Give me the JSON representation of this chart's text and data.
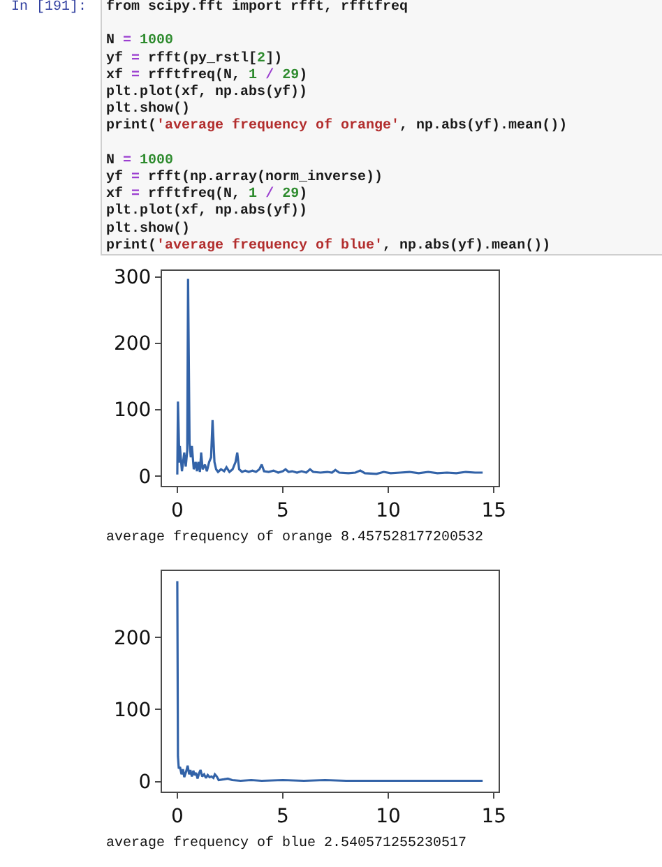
{
  "chart_data": [
    {
      "type": "other",
      "annotations": [
        "In [191]:",
        "from scipy.fft import rfft, rfftfreq",
        "N = 1000\nyf = rfft(py_rstl[2])\nxf = rfftfreq(N, 1 / 29)\nplt.plot(xf, np.abs(yf))\nplt.show()\nprint('average frequency of orange', np.abs(yf).mean())",
        "N = 1000\nyf = rfft(np.array(norm_inverse))\nxf = rfftfreq(N, 1 / 29)\nplt.plot(xf, np.abs(yf))\nplt.show()\nprint('average frequency of blue', np.abs(yf).mean())"
      ]
    },
    {
      "type": "line",
      "x": [
        0,
        0.03,
        0.1,
        0.12,
        0.22,
        0.33,
        0.4,
        0.47,
        0.51,
        0.58,
        0.64,
        0.69,
        0.78,
        0.87,
        0.93,
        1.0,
        1.07,
        1.13,
        1.2,
        1.31,
        1.4,
        1.51,
        1.6,
        1.67,
        1.76,
        1.84,
        1.93,
        2.07,
        2.22,
        2.33,
        2.47,
        2.62,
        2.76,
        2.84,
        2.93,
        3.07,
        3.22,
        3.38,
        3.56,
        3.73,
        3.89,
        4.0,
        4.11,
        4.33,
        4.56,
        4.78,
        5.0,
        5.13,
        5.27,
        5.44,
        5.67,
        5.89,
        6.11,
        6.29,
        6.44,
        6.78,
        7.11,
        7.33,
        7.49,
        7.67,
        8.11,
        8.44,
        8.67,
        8.89,
        9.44,
        9.78,
        10.11,
        10.56,
        11.0,
        11.44,
        11.89,
        12.33,
        12.78,
        13.22,
        13.67,
        14.11,
        14.47
      ],
      "values": [
        2,
        112,
        20,
        45,
        7,
        35,
        14,
        38,
        297,
        49,
        28,
        45,
        10,
        21,
        7,
        21,
        6,
        35,
        10,
        17,
        7,
        21,
        28,
        84,
        21,
        10,
        6,
        10,
        7,
        13,
        6,
        10,
        21,
        35,
        10,
        6,
        8,
        6,
        8,
        6,
        10,
        17,
        7,
        6,
        8,
        5,
        7,
        10,
        6,
        7,
        5,
        7,
        5,
        10,
        6,
        5,
        6,
        5,
        9,
        5,
        4,
        5,
        8,
        4,
        3,
        6,
        4,
        5,
        6,
        4,
        6,
        4,
        5,
        4,
        6,
        5,
        5
      ],
      "color": "#3363a8",
      "xlim": [
        -0.725,
        15.225
      ],
      "ylim": [
        -15,
        309
      ],
      "xticks": [
        0,
        5,
        10,
        15
      ],
      "yticks": [
        0,
        100,
        200,
        300
      ],
      "annotations": [
        "average frequency of orange 8.457528177200532"
      ]
    },
    {
      "type": "line",
      "x": [
        0,
        0.03,
        0.07,
        0.13,
        0.2,
        0.27,
        0.33,
        0.42,
        0.49,
        0.56,
        0.62,
        0.69,
        0.76,
        0.82,
        0.89,
        0.96,
        1.04,
        1.1,
        1.18,
        1.27,
        1.36,
        1.44,
        1.53,
        1.62,
        1.71,
        1.78,
        1.87,
        1.96,
        2.2,
        2.4,
        2.6,
        3.0,
        3.5,
        4.0,
        5.0,
        6.0,
        7.0,
        8.0,
        9.0,
        10.0,
        11.0,
        12.0,
        13.0,
        14.47
      ],
      "values": [
        278,
        35,
        18,
        20,
        10,
        17,
        6,
        14,
        22,
        10,
        16,
        7,
        15,
        9,
        12,
        4,
        12,
        16,
        7,
        10,
        5,
        9,
        6,
        7,
        5,
        10,
        7,
        2,
        3,
        4,
        2,
        1,
        2,
        1,
        2,
        1,
        2,
        1,
        1,
        1,
        1,
        1,
        1,
        1
      ],
      "color": "#3363a8",
      "xlim": [
        -0.725,
        15.225
      ],
      "ylim": [
        -14,
        292
      ],
      "xticks": [
        0,
        5,
        10,
        15
      ],
      "yticks": [
        0,
        100,
        200
      ],
      "annotations": [
        "average frequency of blue 2.540571255230517"
      ]
    }
  ]
}
